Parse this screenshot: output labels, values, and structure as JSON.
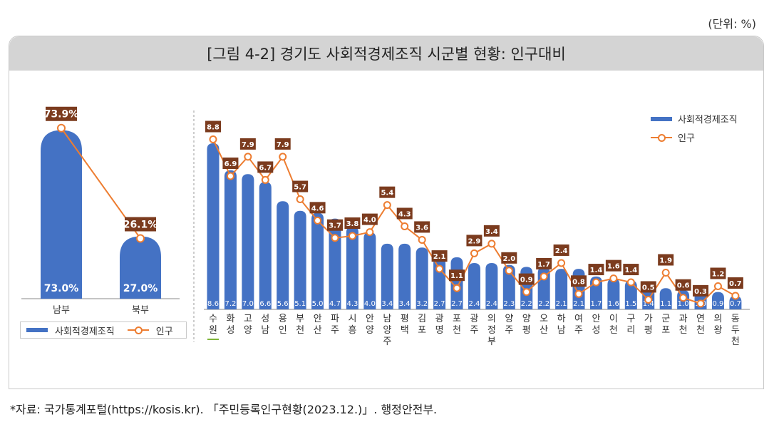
{
  "unit_label": "(단위: %)",
  "title": "[그림 4-2] 경기도 사회적경제조직 시군별 현황: 인구대비",
  "source": "*자료: 국가통계포털(https://kosis.kr). 「주민등록인구현황(2023.12.)」. 행정안전부.",
  "legend": {
    "bar": "사회적경제조직",
    "line": "인구"
  },
  "colors": {
    "bar": "#4472c4",
    "line": "#ed7d31",
    "label_box": "#7b3b1e"
  },
  "chart_data": [
    {
      "type": "bar",
      "categories": [
        "남부",
        "북부"
      ],
      "series": [
        {
          "name": "사회적경제조직",
          "values": [
            73.0,
            27.0
          ],
          "labels": [
            "73.0%",
            "27.0%"
          ]
        },
        {
          "name": "인구",
          "values": [
            73.9,
            26.1
          ],
          "labels": [
            "73.9%",
            "26.1%"
          ]
        }
      ]
    },
    {
      "type": "bar",
      "categories": [
        "수원",
        "화성",
        "고양",
        "성남",
        "용인",
        "부천",
        "안산",
        "파주",
        "시흥",
        "안양",
        "남양주",
        "평택",
        "김포",
        "광명",
        "포천",
        "광주",
        "의정부",
        "양주",
        "양평",
        "오산",
        "하남",
        "여주",
        "안성",
        "이천",
        "구리",
        "가평",
        "군포",
        "과천",
        "연천",
        "의왕",
        "동두천"
      ],
      "series": [
        {
          "name": "사회적경제조직",
          "values": [
            8.6,
            7.2,
            7.0,
            6.6,
            5.6,
            5.1,
            5.0,
            4.7,
            4.3,
            4.0,
            3.4,
            3.4,
            3.2,
            2.7,
            2.7,
            2.4,
            2.4,
            2.3,
            2.2,
            2.2,
            2.1,
            2.1,
            1.7,
            1.6,
            1.5,
            1.4,
            1.1,
            1.0,
            1.0,
            0.9,
            0.7
          ]
        },
        {
          "name": "인구",
          "values": [
            8.8,
            6.9,
            7.9,
            6.7,
            7.9,
            5.7,
            4.6,
            3.7,
            3.8,
            4.0,
            5.4,
            4.3,
            3.6,
            2.1,
            1.1,
            2.9,
            3.4,
            2.0,
            0.9,
            1.7,
            2.4,
            0.8,
            1.4,
            1.6,
            1.4,
            0.5,
            1.9,
            0.6,
            0.3,
            1.2,
            0.7
          ]
        }
      ]
    }
  ]
}
